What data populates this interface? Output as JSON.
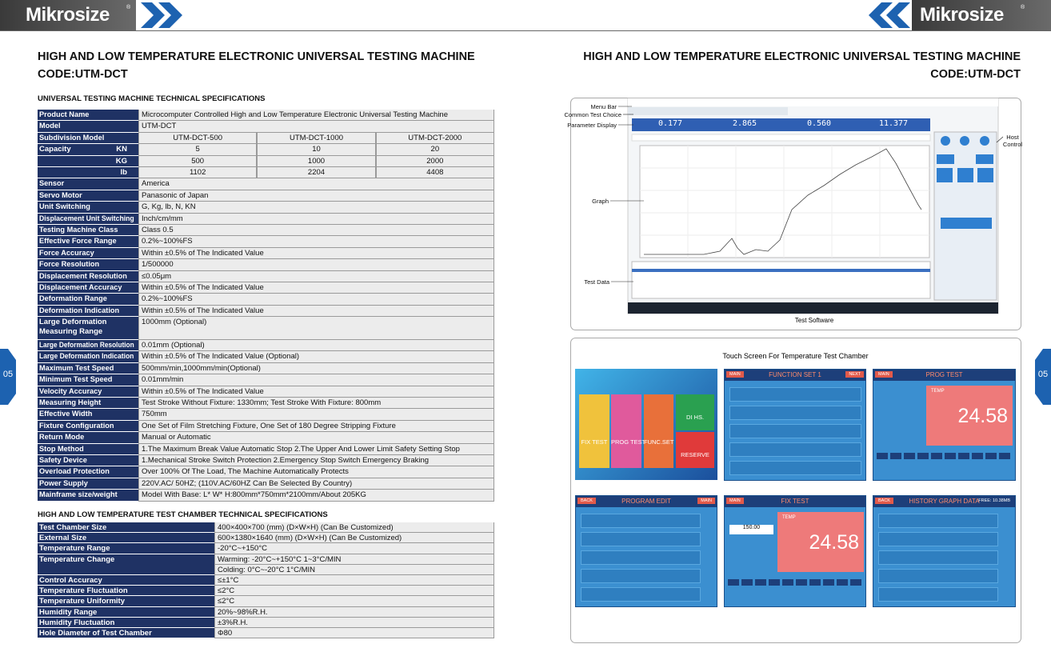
{
  "page_number": "05",
  "left": {
    "logo": "Mikrosize",
    "registered": "®",
    "title": "HIGH AND LOW TEMPERATURE ELECTRONIC UNIVERSAL TESTING MACHINE",
    "code": "CODE:UTM-DCT",
    "spec": {
      "heading": "UNIVERSAL TESTING MACHINE TECHNICAL SPECIFICATIONS",
      "rows_top": [
        [
          "Product Name",
          "Microcomputer Controlled High and Low Temperature Electronic Universal Testing Machine"
        ],
        [
          "Model",
          "UTM-DCT"
        ],
        [
          "Subdivision Model",
          "UTM-DCT-500",
          "UTM-DCT-1000",
          "UTM-DCT-2000"
        ]
      ],
      "capacity": {
        "label": "Capacity",
        "rows": [
          [
            "KN",
            "5",
            "10",
            "20"
          ],
          [
            "KG",
            "500",
            "1000",
            "2000"
          ],
          [
            "lb",
            "1102",
            "2204",
            "4408"
          ]
        ]
      },
      "rows": [
        [
          "Sensor",
          "America"
        ],
        [
          "Servo Motor",
          "Panasonic of Japan"
        ],
        [
          "Unit Switching",
          "G, Kg, lb, N, KN"
        ],
        [
          "Displacement Unit Switching",
          "Inch/cm/mm"
        ],
        [
          "Testing Machine Class",
          "Class 0.5"
        ],
        [
          "Effective Force Range",
          "0.2%~100%FS"
        ],
        [
          "Force Accuracy",
          "Within ±0.5% of The Indicated Value"
        ],
        [
          "Force Resolution",
          "1/500000"
        ],
        [
          "Displacement Resolution",
          "≤0.05μm"
        ],
        [
          "Displacement Accuracy",
          "Within ±0.5% of The Indicated Value"
        ],
        [
          "Deformation Range",
          "0.2%~100%FS"
        ],
        [
          "Deformation Indication",
          "Within ±0.5% of The Indicated Value"
        ],
        [
          "Large Deformation Measuring Range",
          "1000mm (Optional)"
        ],
        [
          "Large Deformation Resolution",
          "0.01mm (Optional)"
        ],
        [
          "Large Deformation Indication",
          "Within ±0.5% of The Indicated Value (Optional)"
        ],
        [
          "Maximum Test Speed",
          "500mm/min,1000mm/min(Optional)"
        ],
        [
          "Minimum Test Speed",
          "0.01mm/min"
        ],
        [
          "Velocity Accuracy",
          "Within ±0.5% of The Indicated Value"
        ],
        [
          "Measuring Height",
          "Test Stroke Without Fixture: 1330mm; Test Stroke With Fixture: 800mm"
        ],
        [
          "Effective Width",
          "750mm"
        ],
        [
          "Fixture Configuration",
          "One Set of Film Stretching Fixture, One Set of 180 Degree Stripping Fixture"
        ],
        [
          "Return Mode",
          "Manual or Automatic"
        ],
        [
          "Stop Method",
          "1.The Maximum Break Value Automatic Stop 2.The Upper And Lower Limit Safety Setting Stop"
        ],
        [
          "Safety Device",
          "1.Mechanical Stroke Switch Protection  2.Emergency Stop Switch Emergency Braking"
        ],
        [
          "Overload Protection",
          "Over 100% Of The Load, The Machine Automatically Protects"
        ],
        [
          "Power Supply",
          "220V.AC/ 50HZ; (110V.AC/60HZ Can Be Selected By Country)"
        ],
        [
          "Mainframe size/weight",
          "Model With Base: L* W* H:800mm*750mm*2100mm/About 205KG"
        ]
      ]
    },
    "chamber": {
      "heading": "HIGH AND LOW TEMPERATURE TEST CHAMBER TECHNICAL SPECIFICATIONS",
      "rows": [
        [
          "Test Chamber Size",
          "400×400×700 (mm) (D×W×H) (Can Be Customized)"
        ],
        [
          "External Size",
          "600×1380×1640 (mm) (D×W×H) (Can Be Customized)"
        ],
        [
          "Temperature Range",
          "-20°C~+150°C"
        ],
        [
          "Temperature Change",
          "Warming: -20°C~+150°C  1~3°C/MIN",
          "Colding: 0°C~-20°C   1°C/MIN"
        ],
        [
          "Control Accuracy",
          "≤±1°C"
        ],
        [
          "Temperature Fluctuation",
          "≤2°C"
        ],
        [
          "Temperature Uniformity",
          "≤2°C"
        ],
        [
          "Humidity Range",
          "20%~98%R.H."
        ],
        [
          "Humidity Fluctuation",
          "±3%R.H."
        ],
        [
          "Hole Diameter of Test Chamber",
          "Φ80"
        ]
      ]
    }
  },
  "right": {
    "logo": "Mikrosize",
    "registered": "®",
    "title": "HIGH AND LOW TEMPERATURE ELECTRONIC UNIVERSAL TESTING MACHINE",
    "code": "CODE:UTM-DCT",
    "software": {
      "caption": "Test Software",
      "menu_bar": "Menu Bar",
      "test_choice": "Common Test Choice",
      "parameter_display": "Parameter Display",
      "graph": "Graph",
      "test_data": "Test Data",
      "host_control": "Host Control",
      "readings": [
        "0.177",
        "2.865",
        "0.560",
        "11.377"
      ]
    },
    "touch": {
      "heading": "Touch Screen For Temperature Test Chamber",
      "home_buttons": [
        "FIX TEST",
        "PROG TEST",
        "FUNC.SET",
        "DI HS.",
        "RESERVE"
      ],
      "panels": [
        {
          "title": "FUNCTION SET 1",
          "left": "MAIN",
          "right": "NEXT"
        },
        {
          "title": "PROG TEST",
          "left": "MAIN",
          "label": "TEMP",
          "value": "24.58"
        },
        {
          "title": "PROGRAM EDIT",
          "left": "BACK",
          "right": "MAIN"
        },
        {
          "title": "FIX TEST",
          "left": "MAIN",
          "label": "TEMP",
          "value": "24.58",
          "set": "150.00"
        },
        {
          "title": "HISTORY GRAPH DATA",
          "left": "BACK",
          "right": "FREE: 10.38MB"
        }
      ]
    }
  }
}
